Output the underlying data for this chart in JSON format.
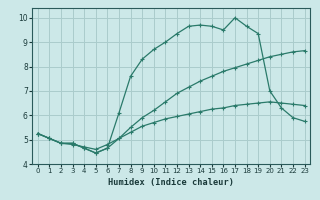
{
  "xlabel": "Humidex (Indice chaleur)",
  "bg_color": "#cce8e8",
  "grid_color": "#aacccc",
  "line_color": "#2a7a6a",
  "xlim": [
    -0.5,
    23.5
  ],
  "ylim": [
    4.0,
    10.4
  ],
  "xticks": [
    0,
    1,
    2,
    3,
    4,
    5,
    6,
    7,
    8,
    9,
    10,
    11,
    12,
    13,
    14,
    15,
    16,
    17,
    18,
    19,
    20,
    21,
    22,
    23
  ],
  "yticks": [
    4,
    5,
    6,
    7,
    8,
    9,
    10
  ],
  "series": [
    [
      5.25,
      5.05,
      4.85,
      4.85,
      4.65,
      4.45,
      4.65,
      5.05,
      5.5,
      5.9,
      6.2,
      6.55,
      6.9,
      7.15,
      7.4,
      7.6,
      7.8,
      7.95,
      8.1,
      8.25,
      8.4,
      8.5,
      8.6,
      8.65
    ],
    [
      5.25,
      5.05,
      4.85,
      4.8,
      4.7,
      4.6,
      4.8,
      5.05,
      5.3,
      5.55,
      5.7,
      5.85,
      5.95,
      6.05,
      6.15,
      6.25,
      6.3,
      6.4,
      6.45,
      6.5,
      6.55,
      6.5,
      6.45,
      6.4
    ],
    [
      5.25,
      5.05,
      4.85,
      4.85,
      4.65,
      4.45,
      4.65,
      6.1,
      7.6,
      8.3,
      8.7,
      9.0,
      9.35,
      9.65,
      9.7,
      9.65,
      9.5,
      10.0,
      9.65,
      9.35,
      7.0,
      6.3,
      5.9,
      5.75
    ]
  ]
}
